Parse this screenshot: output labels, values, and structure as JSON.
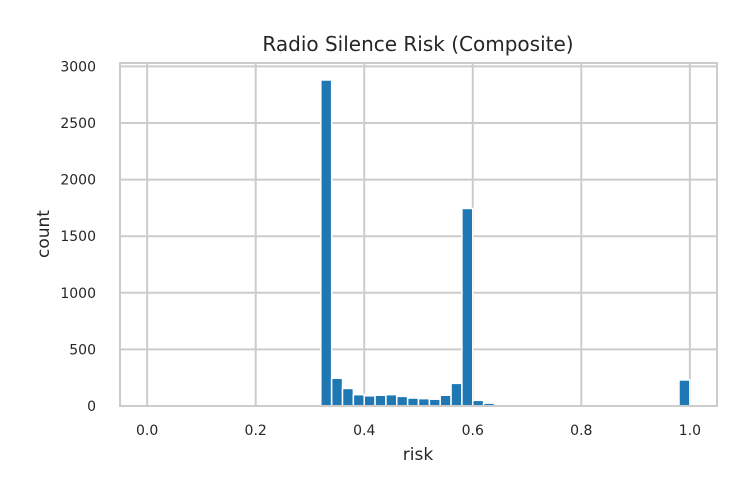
{
  "chart_data": {
    "type": "bar",
    "title": "Radio Silence Risk (Composite)",
    "xlabel": "risk",
    "ylabel": "count",
    "xlim": [
      -0.05,
      1.05
    ],
    "ylim": [
      0,
      3030
    ],
    "xticks": [
      "0.0",
      "0.2",
      "0.4",
      "0.6",
      "0.8",
      "1.0"
    ],
    "xtick_values": [
      0.0,
      0.2,
      0.4,
      0.6,
      0.8,
      1.0
    ],
    "yticks": [
      "0",
      "500",
      "1000",
      "1500",
      "2000",
      "2500",
      "3000"
    ],
    "ytick_values": [
      0,
      500,
      1000,
      1500,
      2000,
      2500,
      3000
    ],
    "bin_edges": [
      0.0,
      0.02,
      0.04,
      0.06,
      0.08,
      0.1,
      0.12,
      0.14,
      0.16,
      0.18,
      0.2,
      0.22,
      0.24,
      0.26,
      0.28,
      0.3,
      0.32,
      0.34,
      0.36,
      0.38,
      0.4,
      0.42,
      0.44,
      0.46,
      0.48,
      0.5,
      0.52,
      0.54,
      0.56,
      0.58,
      0.6,
      0.62,
      0.64,
      0.66,
      0.68,
      0.7,
      0.72,
      0.74,
      0.76,
      0.78,
      0.8,
      0.82,
      0.84,
      0.86,
      0.88,
      0.9,
      0.92,
      0.94,
      0.96,
      0.98,
      1.0
    ],
    "values": [
      0,
      0,
      0,
      0,
      0,
      0,
      0,
      0,
      0,
      0,
      0,
      0,
      0,
      0,
      0,
      0,
      2880,
      245,
      155,
      100,
      90,
      95,
      100,
      85,
      70,
      65,
      60,
      95,
      200,
      1745,
      50,
      25,
      10,
      5,
      5,
      3,
      2,
      2,
      2,
      2,
      2,
      2,
      2,
      2,
      2,
      2,
      2,
      2,
      2,
      230
    ],
    "bar_color": "#1f77b4",
    "grid": true,
    "legend": false
  }
}
